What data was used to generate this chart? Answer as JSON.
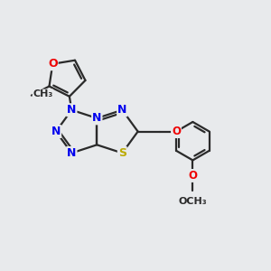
{
  "background_color": "#e8eaec",
  "bond_color": "#2a2a2a",
  "bond_width": 1.6,
  "atom_colors": {
    "N": "#0000ee",
    "O": "#ee0000",
    "S": "#bbaa00",
    "C": "#2a2a2a"
  },
  "font_size": 8.5,
  "figsize": [
    3.0,
    3.0
  ],
  "dpi": 100
}
